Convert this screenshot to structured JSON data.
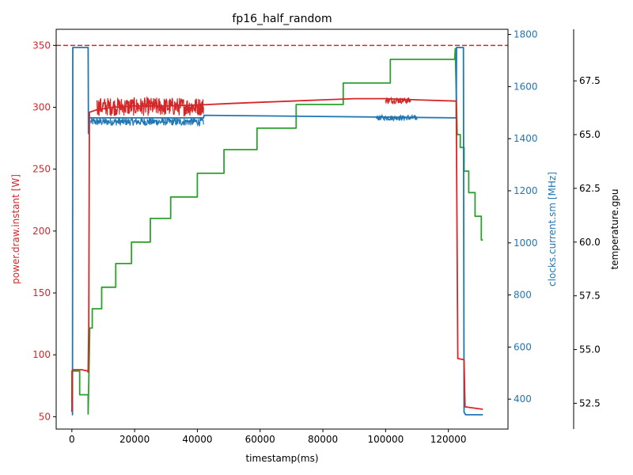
{
  "chart_data": {
    "type": "line",
    "title": "fp16_half_random",
    "xlabel": "timestamp(ms)",
    "xlim": [
      -5000,
      139000
    ],
    "x_ticks": [
      0,
      20000,
      40000,
      60000,
      80000,
      100000,
      120000
    ],
    "x_tick_labels": [
      "0",
      "20000",
      "40000",
      "60000",
      "80000",
      "100000",
      "120000"
    ],
    "axes": [
      {
        "side": "left",
        "label": "power.draw.instant [W]",
        "color": "#d62728",
        "ylim": [
          40,
          363
        ],
        "ticks": [
          50,
          100,
          150,
          200,
          250,
          300,
          350
        ],
        "tick_labels": [
          "50",
          "100",
          "150",
          "200",
          "250",
          "300",
          "350"
        ]
      },
      {
        "side": "right",
        "label": "clocks.current.sm [MHz]",
        "color": "#1f77b4",
        "ylim": [
          285,
          1820
        ],
        "ticks": [
          400,
          600,
          800,
          1000,
          1200,
          1400,
          1600,
          1800
        ],
        "tick_labels": [
          "400",
          "600",
          "800",
          "1000",
          "1200",
          "1400",
          "1600",
          "1800"
        ]
      },
      {
        "side": "right-outer",
        "label": "temperature.gpu",
        "color": "#000000",
        "ylim": [
          51.3,
          69.9
        ],
        "ticks": [
          52.5,
          55.0,
          57.5,
          60.0,
          62.5,
          65.0,
          67.5
        ],
        "tick_labels": [
          "52.5",
          "55.0",
          "57.5",
          "60.0",
          "62.5",
          "65.0",
          "67.5"
        ]
      }
    ],
    "reference_line": {
      "axis": "left",
      "y": 350,
      "color": "#d62728",
      "style": "dashed"
    },
    "series": [
      {
        "axis": "left",
        "color": "#d62728",
        "points": [
          [
            0,
            54
          ],
          [
            200,
            88
          ],
          [
            3000,
            88
          ],
          [
            5000,
            87
          ],
          [
            5200,
            86
          ],
          [
            5400,
            123
          ],
          [
            5600,
            296
          ],
          [
            8000,
            298
          ],
          [
            13000,
            300
          ],
          [
            20000,
            301
          ],
          [
            30000,
            301
          ],
          [
            41500,
            302
          ],
          [
            50000,
            303
          ],
          [
            60000,
            304
          ],
          [
            70000,
            305
          ],
          [
            80000,
            306
          ],
          [
            90000,
            307
          ],
          [
            100000,
            307
          ],
          [
            110000,
            306
          ],
          [
            122500,
            305
          ],
          [
            123000,
            97
          ],
          [
            125000,
            96
          ],
          [
            125300,
            58
          ],
          [
            128000,
            57
          ],
          [
            131000,
            56
          ]
        ],
        "noise": [
          {
            "from": 8000,
            "to": 42000,
            "low": 293,
            "high": 308
          },
          {
            "from": 100000,
            "to": 108000,
            "low": 303,
            "high": 308
          }
        ]
      },
      {
        "axis": "right",
        "color": "#1f77b4",
        "points": [
          [
            0,
            340
          ],
          [
            200,
            340
          ],
          [
            300,
            1750
          ],
          [
            5000,
            1750
          ],
          [
            5200,
            1750
          ],
          [
            5300,
            1420
          ],
          [
            5600,
            1480
          ],
          [
            42000,
            1480
          ],
          [
            42100,
            1490
          ],
          [
            122500,
            1480
          ],
          [
            122600,
            1750
          ],
          [
            124800,
            1750
          ],
          [
            125000,
            350
          ],
          [
            125500,
            340
          ],
          [
            131000,
            340
          ]
        ],
        "noise": [
          {
            "from": 6000,
            "to": 42000,
            "low": 1450,
            "high": 1480
          },
          {
            "from": 97000,
            "to": 110000,
            "low": 1470,
            "high": 1490
          }
        ]
      },
      {
        "axis": "right-outer",
        "color": "#2ca02c",
        "points": [
          [
            0,
            52.5
          ],
          [
            0,
            54.0
          ],
          [
            2500,
            54.0
          ],
          [
            2500,
            52.9
          ],
          [
            5200,
            52.9
          ],
          [
            5200,
            52.0
          ],
          [
            5600,
            55.0
          ],
          [
            5700,
            56.0
          ],
          [
            6500,
            56.0
          ],
          [
            6500,
            56.9
          ],
          [
            9500,
            56.9
          ],
          [
            9500,
            57.9
          ],
          [
            14000,
            57.9
          ],
          [
            14000,
            59.0
          ],
          [
            19000,
            59.0
          ],
          [
            19000,
            60.0
          ],
          [
            25000,
            60.0
          ],
          [
            25000,
            61.1
          ],
          [
            31500,
            61.1
          ],
          [
            31500,
            62.1
          ],
          [
            40000,
            62.1
          ],
          [
            40000,
            63.2
          ],
          [
            48500,
            63.2
          ],
          [
            48500,
            64.3
          ],
          [
            59000,
            64.3
          ],
          [
            59000,
            65.3
          ],
          [
            71500,
            65.3
          ],
          [
            71500,
            66.4
          ],
          [
            86500,
            66.4
          ],
          [
            86500,
            67.4
          ],
          [
            101500,
            67.4
          ],
          [
            101500,
            68.5
          ],
          [
            122000,
            68.5
          ],
          [
            122200,
            69.0
          ],
          [
            122800,
            65.0
          ],
          [
            123800,
            65.0
          ],
          [
            123800,
            64.4
          ],
          [
            125000,
            64.4
          ],
          [
            125000,
            63.3
          ],
          [
            126500,
            63.3
          ],
          [
            126500,
            62.3
          ],
          [
            128500,
            62.3
          ],
          [
            128500,
            61.2
          ],
          [
            130500,
            61.2
          ],
          [
            130500,
            60.1
          ],
          [
            131000,
            60.1
          ]
        ],
        "noise": []
      }
    ]
  }
}
